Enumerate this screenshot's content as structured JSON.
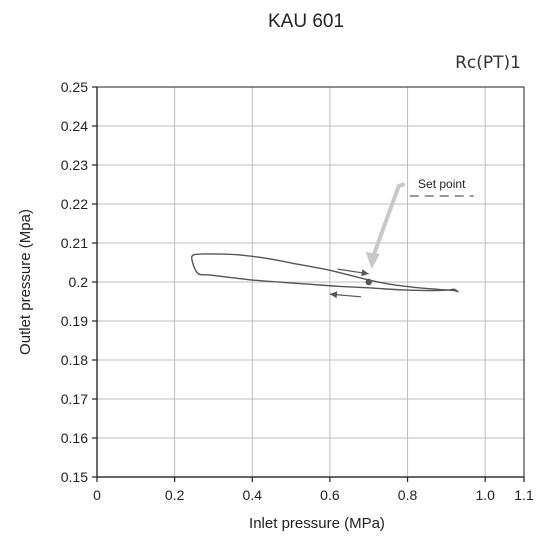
{
  "chart_data": {
    "type": "line",
    "title": "KAU 601",
    "subtitle": "Rc(PT)1",
    "xlabel": "Inlet pressure (MPa)",
    "ylabel": "Outlet pressure (Mpa)",
    "xlim": [
      0,
      1.1
    ],
    "ylim": [
      0.15,
      0.25
    ],
    "x_ticks": [
      0,
      0.2,
      0.4,
      0.6,
      0.8,
      1.0,
      1.1
    ],
    "x_tick_labels": [
      "0",
      "0.2",
      "0.4",
      "0.6",
      "0.8",
      "1.0",
      "1.1"
    ],
    "y_ticks": [
      0.15,
      0.16,
      0.17,
      0.18,
      0.19,
      0.2,
      0.21,
      0.22,
      0.23,
      0.24,
      0.25
    ],
    "y_tick_labels": [
      "0.15",
      "0.16",
      "0.17",
      "0.18",
      "0.19",
      "0.2",
      "0.21",
      "0.22",
      "0.23",
      "0.24",
      "0.25"
    ],
    "grid": true,
    "series": [
      {
        "x": [
          0.92,
          0.9,
          0.85,
          0.78,
          0.7,
          0.62,
          0.55,
          0.48,
          0.4,
          0.34,
          0.29,
          0.26,
          0.245,
          0.25,
          0.29,
          0.36,
          0.44,
          0.52,
          0.6,
          0.68,
          0.75,
          0.82,
          0.88,
          0.92,
          0.93,
          0.92
        ],
        "y": [
          0.1982,
          0.1979,
          0.1978,
          0.198,
          0.1985,
          0.1989,
          0.1994,
          0.1999,
          0.2005,
          0.2012,
          0.2018,
          0.2022,
          0.2055,
          0.207,
          0.2072,
          0.207,
          0.206,
          0.2045,
          0.203,
          0.201,
          0.1995,
          0.1986,
          0.1981,
          0.1978,
          0.1975,
          0.1982
        ]
      }
    ],
    "set_point": {
      "label": "Set point",
      "x": 0.7,
      "y": 0.2
    },
    "arrows": [
      {
        "direction": "right",
        "x_from": 0.62,
        "x_to": 0.7,
        "y_from": 0.2033,
        "y_to": 0.2021
      },
      {
        "direction": "left",
        "x_from": 0.68,
        "x_to": 0.6,
        "y_from": 0.1962,
        "y_to": 0.1969
      }
    ],
    "colors": {
      "curve": "#555555",
      "grid": "#bdbdbd",
      "annotation_arrow": "#c8c8c8",
      "point": "#555555"
    }
  }
}
